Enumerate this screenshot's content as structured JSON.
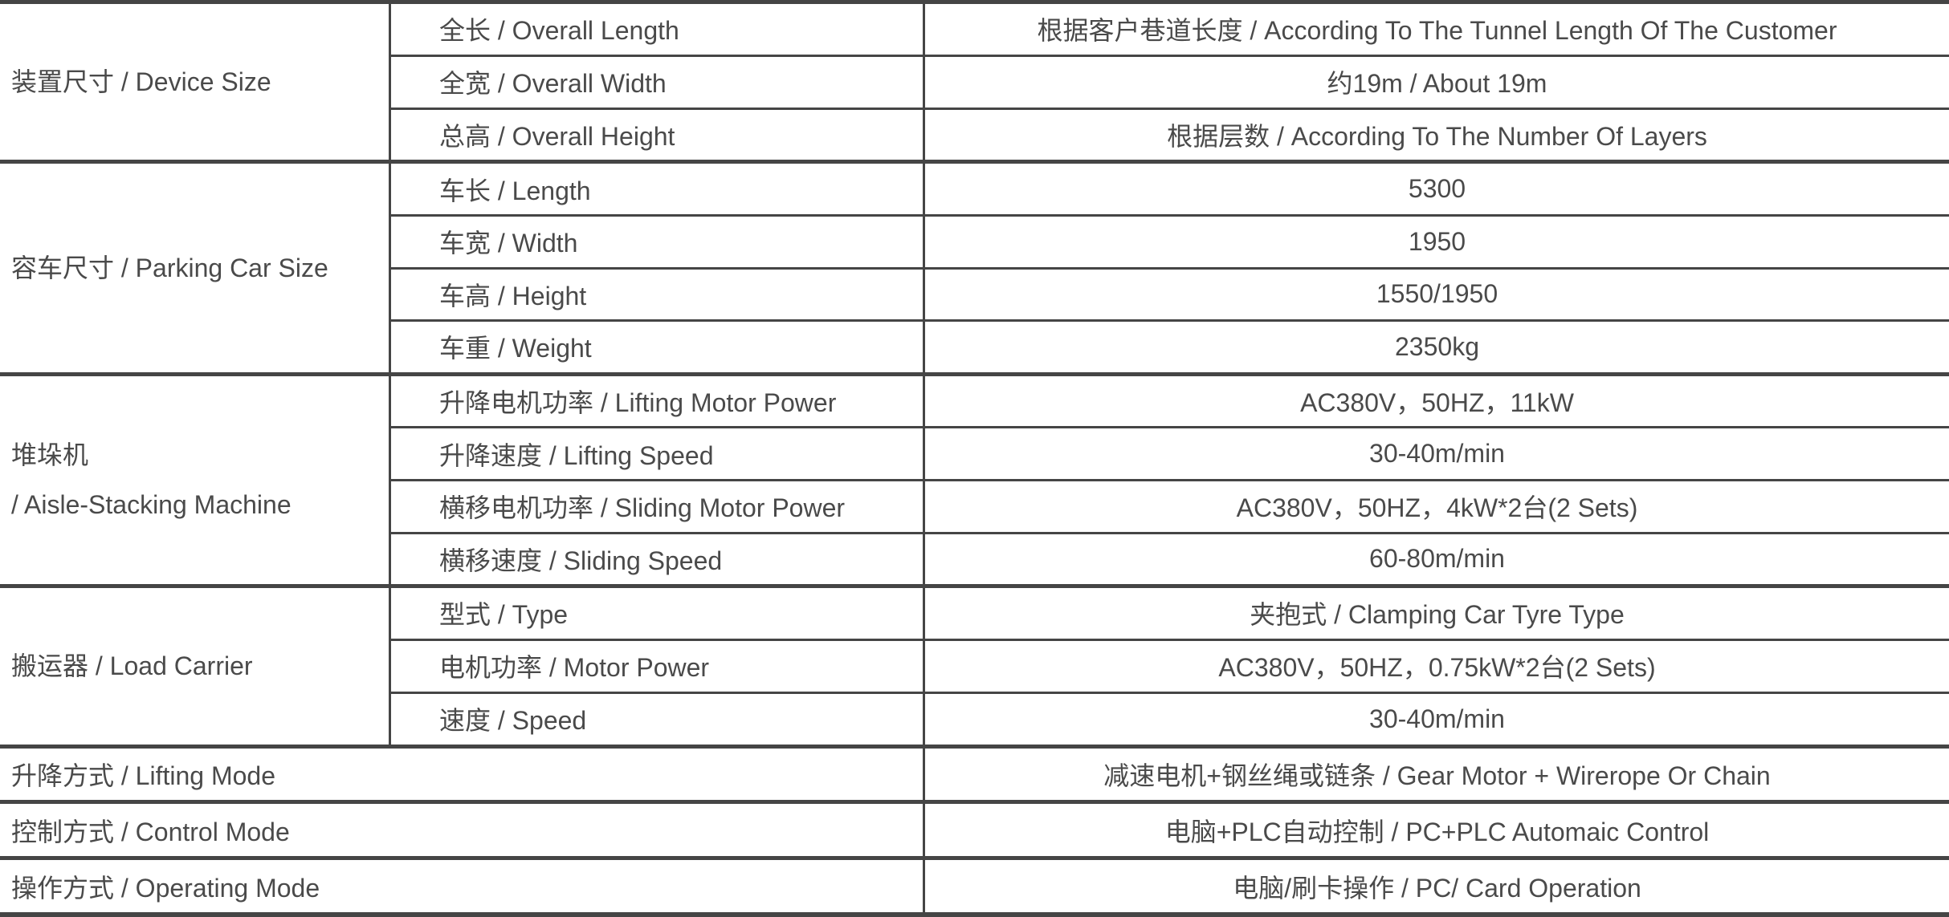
{
  "table": {
    "colors": {
      "border": "#454545",
      "text": "#4a4a4a",
      "background": "#ffffff"
    },
    "sections": [
      {
        "category_lines": [
          "装置尺寸 / Device Size"
        ],
        "rows": [
          {
            "label": "全长 / Overall Length",
            "value": "根据客户巷道长度 / According To The Tunnel Length Of The Customer"
          },
          {
            "label": "全宽 / Overall Width",
            "value": "约19m / About 19m"
          },
          {
            "label": "总高 / Overall Height",
            "value": "根据层数 / According To The Number Of Layers"
          }
        ]
      },
      {
        "category_lines": [
          "容车尺寸 / Parking Car Size"
        ],
        "rows": [
          {
            "label": "车长 / Length",
            "value": "5300"
          },
          {
            "label": "车宽 / Width",
            "value": "1950"
          },
          {
            "label": "车高 / Height",
            "value": "1550/1950"
          },
          {
            "label": "车重 / Weight",
            "value": "2350kg"
          }
        ]
      },
      {
        "category_lines": [
          "堆垛机",
          "/ Aisle-Stacking Machine"
        ],
        "rows": [
          {
            "label": "升降电机功率 / Lifting Motor Power",
            "value": "AC380V，50HZ，11kW"
          },
          {
            "label": "升降速度 / Lifting Speed",
            "value": "30-40m/min"
          },
          {
            "label": "横移电机功率 / Sliding Motor Power",
            "value": "AC380V，50HZ，4kW*2台(2 Sets)"
          },
          {
            "label": "横移速度 / Sliding Speed",
            "value": "60-80m/min"
          }
        ]
      },
      {
        "category_lines": [
          "搬运器 / Load Carrier"
        ],
        "rows": [
          {
            "label": "型式 / Type",
            "value": "夹抱式 / Clamping Car Tyre Type"
          },
          {
            "label": "电机功率 / Motor Power",
            "value": "AC380V，50HZ，0.75kW*2台(2 Sets)"
          },
          {
            "label": "速度 / Speed",
            "value": "30-40m/min"
          }
        ]
      }
    ],
    "footer_rows": [
      {
        "label": "升降方式 / Lifting Mode",
        "value": "减速电机+钢丝绳或链条 / Gear Motor + Wirerope Or Chain"
      },
      {
        "label": "控制方式 / Control Mode",
        "value": "电脑+PLC自动控制 / PC+PLC Automaic Control"
      },
      {
        "label": "操作方式 / Operating Mode",
        "value": "电脑/刷卡操作 / PC/ Card Operation"
      }
    ]
  }
}
